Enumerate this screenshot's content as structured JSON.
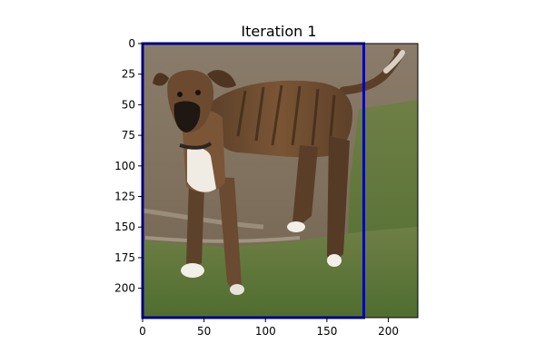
{
  "chart_data": {
    "type": "image",
    "title": "Iteration 1",
    "image": {
      "width": 224,
      "height": 224,
      "subject": "brindle dog standing on grass and dirt"
    },
    "xlim": [
      0,
      224
    ],
    "ylim": [
      224,
      0
    ],
    "xticks": [
      0,
      50,
      100,
      150,
      200
    ],
    "yticks": [
      0,
      25,
      50,
      75,
      100,
      125,
      150,
      175,
      200
    ],
    "bounding_box": {
      "x_min": 0,
      "y_min": 0,
      "x_max": 180,
      "y_max": 224,
      "color": "#0000cc"
    },
    "grid": false,
    "legend": "none"
  }
}
